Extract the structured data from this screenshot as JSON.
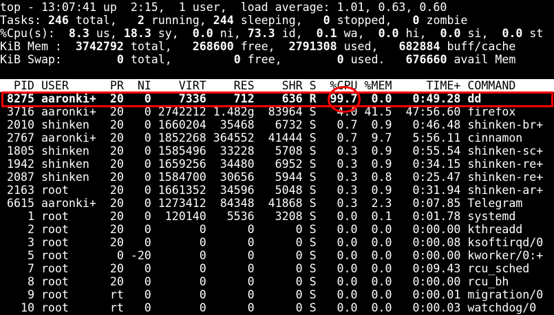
{
  "summary": [
    [
      [
        "top - 13:07:41 up  2:15,  1 user,  load average: 1.01, 0.63, 0.60",
        false
      ]
    ],
    [
      [
        "Tasks: ",
        false
      ],
      [
        "246",
        true
      ],
      [
        " total,   ",
        false
      ],
      [
        "2",
        true
      ],
      [
        " running, ",
        false
      ],
      [
        "244",
        true
      ],
      [
        " sleeping,   ",
        false
      ],
      [
        "0",
        true
      ],
      [
        " stopped,   ",
        false
      ],
      [
        "0",
        true
      ],
      [
        " zombie",
        false
      ]
    ],
    [
      [
        "%Cpu(s):  ",
        false
      ],
      [
        "8.3",
        true
      ],
      [
        " us, ",
        false
      ],
      [
        "18.3",
        true
      ],
      [
        " sy,  ",
        false
      ],
      [
        "0.0",
        true
      ],
      [
        " ni, ",
        false
      ],
      [
        "73.3",
        true
      ],
      [
        " id,  ",
        false
      ],
      [
        "0.1",
        true
      ],
      [
        " wa,  ",
        false
      ],
      [
        "0.0",
        true
      ],
      [
        " hi,  ",
        false
      ],
      [
        "0.0",
        true
      ],
      [
        " si,  ",
        false
      ],
      [
        "0.0",
        true
      ],
      [
        " st",
        false
      ]
    ],
    [
      [
        "KiB Mem :  ",
        false
      ],
      [
        "3742792",
        true
      ],
      [
        " total,   ",
        false
      ],
      [
        "268600",
        true
      ],
      [
        " free,  ",
        false
      ],
      [
        "2791308",
        true
      ],
      [
        " used,   ",
        false
      ],
      [
        "682884",
        true
      ],
      [
        " buff/cache",
        false
      ]
    ],
    [
      [
        "KiB Swap:        ",
        false
      ],
      [
        "0",
        true
      ],
      [
        " total,         ",
        false
      ],
      [
        "0",
        true
      ],
      [
        " free,        ",
        false
      ],
      [
        "0",
        true
      ],
      [
        " used.   ",
        false
      ],
      [
        "676660",
        true
      ],
      [
        " avail Mem",
        false
      ]
    ]
  ],
  "columns": {
    "pid": "PID",
    "user": "USER",
    "pr": "PR",
    "ni": "NI",
    "virt": "VIRT",
    "res": "RES",
    "shr": "SHR",
    "s": "S",
    "cpu": "%CPU",
    "mem": "%MEM",
    "time": "TIME+",
    "command": "COMMAND"
  },
  "processes": [
    {
      "pid": "8275",
      "user": "aaronki+",
      "pr": "20",
      "ni": "0",
      "virt": "7336",
      "res": "712",
      "shr": "636",
      "s": "R",
      "cpu": "99.7",
      "mem": "0.0",
      "time": "0:49.28",
      "command": "dd",
      "highlighted": true
    },
    {
      "pid": "3716",
      "user": "aaronki+",
      "pr": "20",
      "ni": "0",
      "virt": "2742212",
      "res": "1.482g",
      "shr": "83964",
      "s": "S",
      "cpu": "4.0",
      "mem": "41.5",
      "time": "47:56.60",
      "command": "firefox"
    },
    {
      "pid": "2010",
      "user": "shinken",
      "pr": "20",
      "ni": "0",
      "virt": "1660204",
      "res": "35468",
      "shr": "6732",
      "s": "S",
      "cpu": "0.7",
      "mem": "0.9",
      "time": "0:46.48",
      "command": "shinken-br+"
    },
    {
      "pid": "2767",
      "user": "aaronki+",
      "pr": "20",
      "ni": "0",
      "virt": "1852268",
      "res": "364552",
      "shr": "41444",
      "s": "S",
      "cpu": "0.7",
      "mem": "9.7",
      "time": "5:56.11",
      "command": "cinnamon"
    },
    {
      "pid": "1805",
      "user": "shinken",
      "pr": "20",
      "ni": "0",
      "virt": "1585496",
      "res": "33228",
      "shr": "5708",
      "s": "S",
      "cpu": "0.3",
      "mem": "0.9",
      "time": "0:55.54",
      "command": "shinken-sc+"
    },
    {
      "pid": "1942",
      "user": "shinken",
      "pr": "20",
      "ni": "0",
      "virt": "1659256",
      "res": "34480",
      "shr": "6952",
      "s": "S",
      "cpu": "0.3",
      "mem": "0.9",
      "time": "0:34.15",
      "command": "shinken-re+"
    },
    {
      "pid": "2087",
      "user": "shinken",
      "pr": "20",
      "ni": "0",
      "virt": "1584700",
      "res": "30656",
      "shr": "5944",
      "s": "S",
      "cpu": "0.3",
      "mem": "0.8",
      "time": "0:25.47",
      "command": "shinken-re+"
    },
    {
      "pid": "2163",
      "user": "root",
      "pr": "20",
      "ni": "0",
      "virt": "1661352",
      "res": "34596",
      "shr": "5048",
      "s": "S",
      "cpu": "0.3",
      "mem": "0.9",
      "time": "0:31.94",
      "command": "shinken-ar+"
    },
    {
      "pid": "6615",
      "user": "aaronki+",
      "pr": "20",
      "ni": "0",
      "virt": "1273412",
      "res": "84348",
      "shr": "41868",
      "s": "S",
      "cpu": "0.3",
      "mem": "2.3",
      "time": "0:07.85",
      "command": "Telegram"
    },
    {
      "pid": "1",
      "user": "root",
      "pr": "20",
      "ni": "0",
      "virt": "120140",
      "res": "5536",
      "shr": "3208",
      "s": "S",
      "cpu": "0.0",
      "mem": "0.1",
      "time": "0:01.78",
      "command": "systemd"
    },
    {
      "pid": "2",
      "user": "root",
      "pr": "20",
      "ni": "0",
      "virt": "0",
      "res": "0",
      "shr": "0",
      "s": "S",
      "cpu": "0.0",
      "mem": "0.0",
      "time": "0:00.00",
      "command": "kthreadd"
    },
    {
      "pid": "3",
      "user": "root",
      "pr": "20",
      "ni": "0",
      "virt": "0",
      "res": "0",
      "shr": "0",
      "s": "S",
      "cpu": "0.0",
      "mem": "0.0",
      "time": "0:00.08",
      "command": "ksoftirqd/0"
    },
    {
      "pid": "5",
      "user": "root",
      "pr": "0",
      "ni": "-20",
      "virt": "0",
      "res": "0",
      "shr": "0",
      "s": "S",
      "cpu": "0.0",
      "mem": "0.0",
      "time": "0:00.00",
      "command": "kworker/0:+"
    },
    {
      "pid": "7",
      "user": "root",
      "pr": "20",
      "ni": "0",
      "virt": "0",
      "res": "0",
      "shr": "0",
      "s": "S",
      "cpu": "0.0",
      "mem": "0.0",
      "time": "0:09.43",
      "command": "rcu_sched"
    },
    {
      "pid": "8",
      "user": "root",
      "pr": "20",
      "ni": "0",
      "virt": "0",
      "res": "0",
      "shr": "0",
      "s": "S",
      "cpu": "0.0",
      "mem": "0.0",
      "time": "0:00.00",
      "command": "rcu_bh"
    },
    {
      "pid": "9",
      "user": "root",
      "pr": "rt",
      "ni": "0",
      "virt": "0",
      "res": "0",
      "shr": "0",
      "s": "S",
      "cpu": "0.0",
      "mem": "0.0",
      "time": "0:00.01",
      "command": "migration/0"
    },
    {
      "pid": "10",
      "user": "root",
      "pr": "rt",
      "ni": "0",
      "virt": "0",
      "res": "0",
      "shr": "0",
      "s": "S",
      "cpu": "0.0",
      "mem": "0.0",
      "time": "0:00.03",
      "command": "watchdog/0"
    }
  ],
  "colors": {
    "background": "#000000",
    "text": "#ffffff",
    "header_bg": "#ffffff",
    "annotation": "#ff0000"
  }
}
